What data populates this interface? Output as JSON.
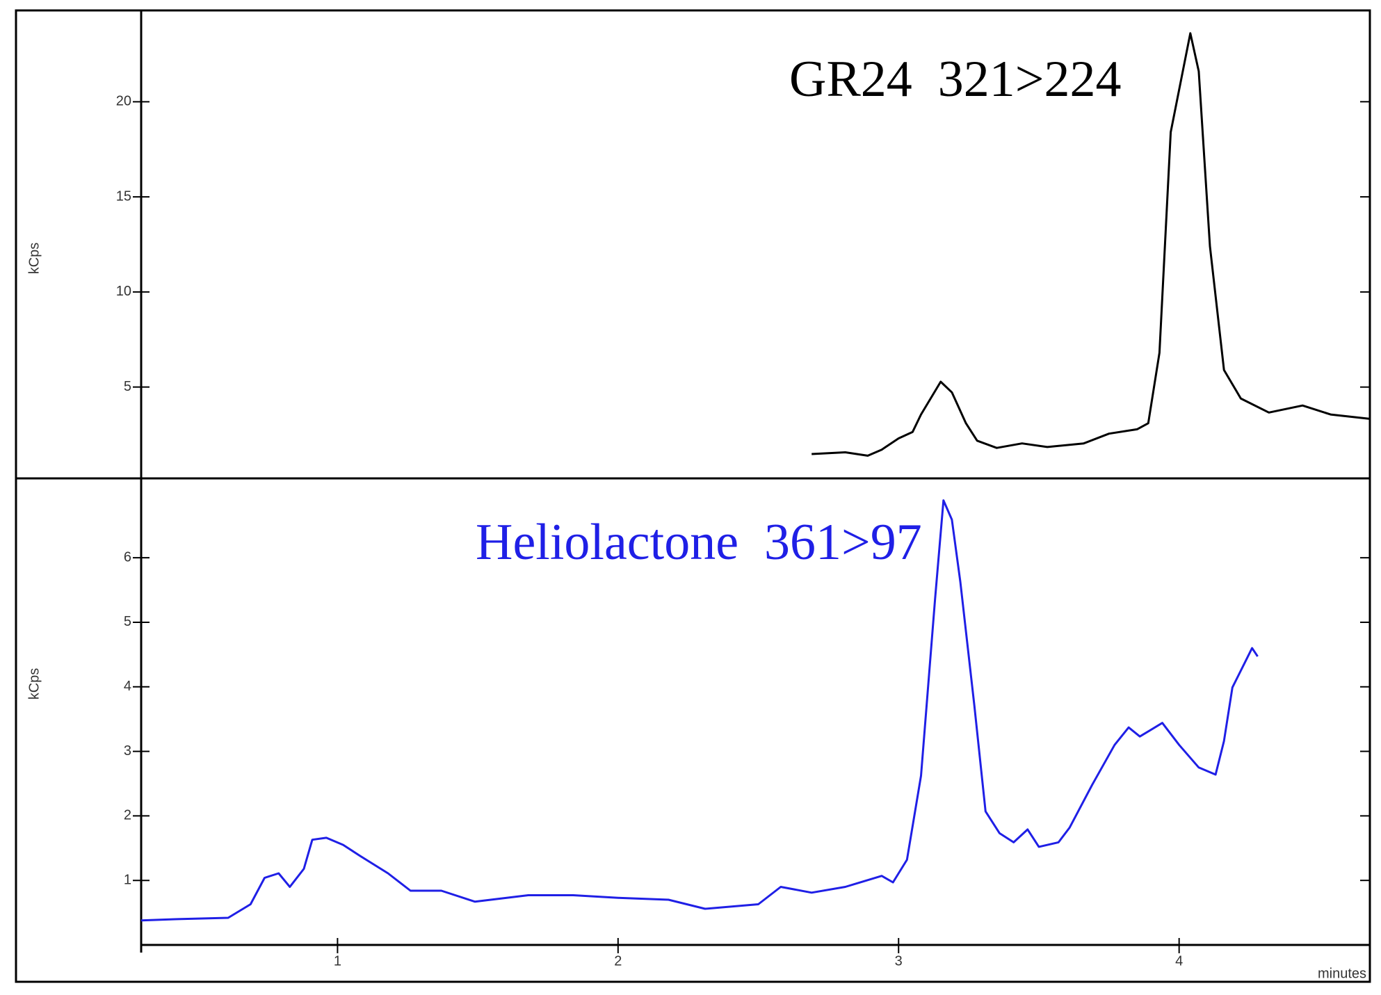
{
  "chart_data": [
    {
      "type": "line",
      "title": "GR24  321>224",
      "title_color": "#000000",
      "y_label": "kCps",
      "xlim": [
        0.3,
        4.68
      ],
      "ylim": [
        0.2,
        24.8
      ],
      "yticks": [
        5,
        10,
        15,
        20
      ],
      "series": [
        {
          "name": "GR24",
          "color": "#000000",
          "x": [
            2.69,
            2.81,
            2.89,
            2.94,
            3.0,
            3.05,
            3.08,
            3.15,
            3.19,
            3.24,
            3.28,
            3.35,
            3.44,
            3.53,
            3.66,
            3.75,
            3.85,
            3.89,
            3.93,
            3.97,
            4.04,
            4.07,
            4.11,
            4.16,
            4.22,
            4.32,
            4.44,
            4.54,
            4.68
          ],
          "values": [
            1.48,
            1.57,
            1.39,
            1.71,
            2.3,
            2.64,
            3.56,
            5.28,
            4.72,
            3.1,
            2.18,
            1.8,
            2.04,
            1.85,
            2.04,
            2.55,
            2.78,
            3.1,
            6.8,
            18.4,
            23.6,
            21.6,
            12.4,
            5.9,
            4.4,
            3.66,
            4.03,
            3.56,
            3.33
          ]
        }
      ]
    },
    {
      "type": "line",
      "title": "Heliolactone  361>97",
      "title_color": "#1f1fe6",
      "y_label": "kCps",
      "x_label": "minutes",
      "xlim": [
        0.3,
        4.68
      ],
      "xticks": [
        1,
        2,
        3,
        4
      ],
      "ylim": [
        0,
        7.23
      ],
      "yticks": [
        1,
        2,
        3,
        4,
        5,
        6
      ],
      "series": [
        {
          "name": "Heliolactone",
          "color": "#1f1fe6",
          "x": [
            0.3,
            0.43,
            0.61,
            0.69,
            0.74,
            0.79,
            0.83,
            0.88,
            0.91,
            0.96,
            1.02,
            1.08,
            1.18,
            1.26,
            1.37,
            1.49,
            1.68,
            1.84,
            2.0,
            2.18,
            2.31,
            2.5,
            2.58,
            2.69,
            2.81,
            2.94,
            2.98,
            3.03,
            3.08,
            3.13,
            3.16,
            3.19,
            3.22,
            3.27,
            3.31,
            3.36,
            3.41,
            3.46,
            3.5,
            3.57,
            3.61,
            3.69,
            3.77,
            3.82,
            3.86,
            3.94,
            4.0,
            4.07,
            4.13,
            4.16,
            4.19,
            4.26,
            4.28
          ],
          "values": [
            0.38,
            0.4,
            0.42,
            0.63,
            1.04,
            1.11,
            0.9,
            1.18,
            1.63,
            1.66,
            1.55,
            1.38,
            1.11,
            0.84,
            0.84,
            0.67,
            0.77,
            0.77,
            0.73,
            0.7,
            0.56,
            0.63,
            0.9,
            0.81,
            0.9,
            1.07,
            0.97,
            1.32,
            2.62,
            5.36,
            6.89,
            6.59,
            5.63,
            3.71,
            2.07,
            1.73,
            1.59,
            1.79,
            1.52,
            1.59,
            1.82,
            2.48,
            3.1,
            3.37,
            3.23,
            3.44,
            3.1,
            2.75,
            2.64,
            3.16,
            3.99,
            4.6,
            4.47
          ]
        }
      ]
    }
  ]
}
